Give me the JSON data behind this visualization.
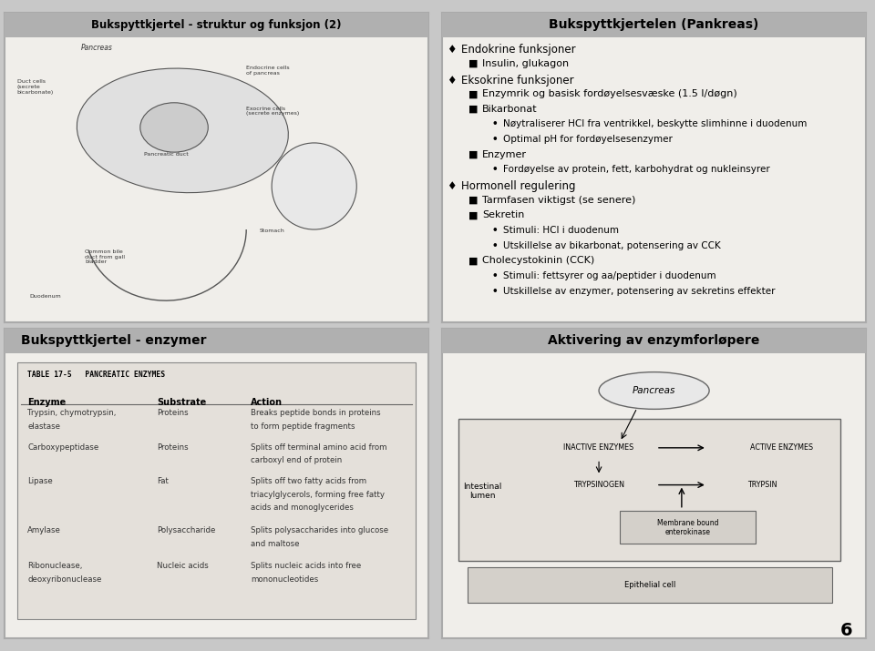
{
  "bg_color": "#c8c8c8",
  "panel_bg": "#f0eeea",
  "panel_border": "#aaaaaa",
  "panel1_title": "Bukspyttkjertel - struktur og funksjon (2)",
  "panel2_title": "Bukspyttkjertelen (Pankreas)",
  "panel3_title": "Bukspyttkjertel - enzymer",
  "panel4_title": "Aktivering av enzymforløpere",
  "panel2_content": [
    {
      "level": 0,
      "bullet": "♦",
      "text": "Endokrine funksjoner"
    },
    {
      "level": 1,
      "bullet": "■",
      "text": "Insulin, glukagon"
    },
    {
      "level": 0,
      "bullet": "♦",
      "text": "Eksokrine funksjoner"
    },
    {
      "level": 1,
      "bullet": "■",
      "text": "Enzymrik og basisk fordøyelsesvæske (1.5 l/døgn)"
    },
    {
      "level": 1,
      "bullet": "■",
      "text": "Bikarbonat"
    },
    {
      "level": 2,
      "bullet": "•",
      "text": "Nøytraliserer HCl fra ventrikkel, beskytte slimhinne i duodenum"
    },
    {
      "level": 2,
      "bullet": "•",
      "text": "Optimal pH for fordøyelsesenzymer"
    },
    {
      "level": 1,
      "bullet": "■",
      "text": "Enzymer"
    },
    {
      "level": 2,
      "bullet": "•",
      "text": "Fordøyelse av protein, fett, karbohydrat og nukleinsyrer"
    },
    {
      "level": 0,
      "bullet": "♦",
      "text": "Hormonell regulering"
    },
    {
      "level": 1,
      "bullet": "■",
      "text": "Tarmfasen viktigst (se senere)"
    },
    {
      "level": 1,
      "bullet": "■",
      "text": "Sekretin"
    },
    {
      "level": 2,
      "bullet": "•",
      "text": "Stimuli: HCl i duodenum"
    },
    {
      "level": 2,
      "bullet": "•",
      "text": "Utskillelse av bikarbonat, potensering av CCK"
    },
    {
      "level": 1,
      "bullet": "■",
      "text": "Cholecystokinin (CCK)"
    },
    {
      "level": 2,
      "bullet": "•",
      "text": "Stimuli: fettsyrer og aa/peptider i duodenum"
    },
    {
      "level": 2,
      "bullet": "•",
      "text": "Utskillelse av enzymer, potensering av sekretins effekter"
    }
  ],
  "table_title": "TABLE 17-5   PANCREATIC ENZYMES",
  "table_headers": [
    "Enzyme",
    "Substrate",
    "Action"
  ],
  "table_rows": [
    [
      "Trypsin, chymotrypsin,\nelastase",
      "Proteins",
      "Breaks peptide bonds in proteins\nto form peptide fragments"
    ],
    [
      "Carboxypeptidase",
      "Proteins",
      "Splits off terminal amino acid from\ncarboxyl end of protein"
    ],
    [
      "Lipase",
      "Fat",
      "Splits off two fatty acids from\ntriacylglycerols, forming free fatty\nacids and monoglycerides"
    ],
    [
      "Amylase",
      "Polysaccharide",
      "Splits polysaccharides into glucose\nand maltose"
    ],
    [
      "Ribonuclease,\ndeoxyribonuclease",
      "Nucleic acids",
      "Splits nucleic acids into free\nmononucleotides"
    ]
  ],
  "page_number": "6"
}
